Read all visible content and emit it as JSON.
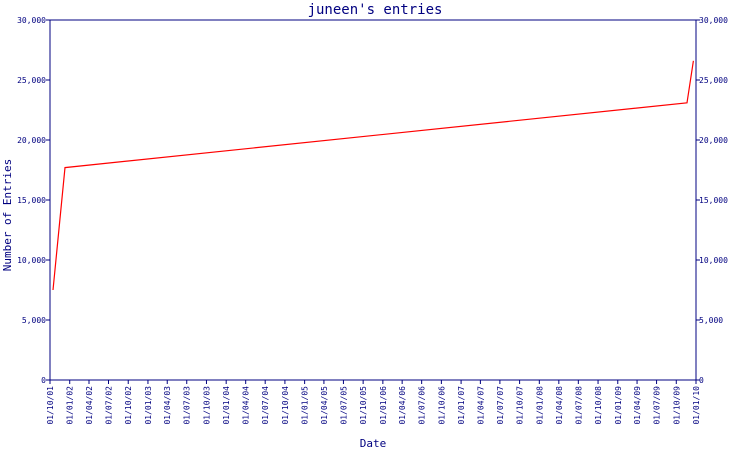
{
  "chart_data": {
    "type": "line",
    "title": "juneen's entries",
    "xlabel": "Date",
    "ylabel": "Number of Entries",
    "ylim": [
      0,
      30000
    ],
    "y_ticks": [
      0,
      5000,
      10000,
      15000,
      20000,
      25000,
      30000
    ],
    "y_tick_labels": [
      "0",
      "5,000",
      "10,000",
      "15,000",
      "20,000",
      "25,000",
      "30,000"
    ],
    "right_axis_labels": true,
    "grid": false,
    "x_tick_labels": [
      "01/10/01",
      "01/01/02",
      "01/04/02",
      "01/07/02",
      "01/10/02",
      "01/01/03",
      "01/04/03",
      "01/07/03",
      "01/10/03",
      "01/01/04",
      "01/04/04",
      "01/07/04",
      "01/10/04",
      "01/01/05",
      "01/04/05",
      "01/07/05",
      "01/10/05",
      "01/01/06",
      "01/04/06",
      "01/07/06",
      "01/10/06",
      "01/01/07",
      "01/04/07",
      "01/07/07",
      "01/10/07",
      "01/01/08",
      "01/04/08",
      "01/07/08",
      "01/10/08",
      "01/01/09",
      "01/04/09",
      "01/07/09",
      "01/10/09",
      "01/01/10"
    ],
    "series": [
      {
        "color": "#ff0000",
        "x": [
          "2001-10-15",
          "2001-12-10",
          "2009-11-20",
          "2009-12-20"
        ],
        "y": [
          7500,
          17700,
          23100,
          26600
        ]
      }
    ]
  }
}
